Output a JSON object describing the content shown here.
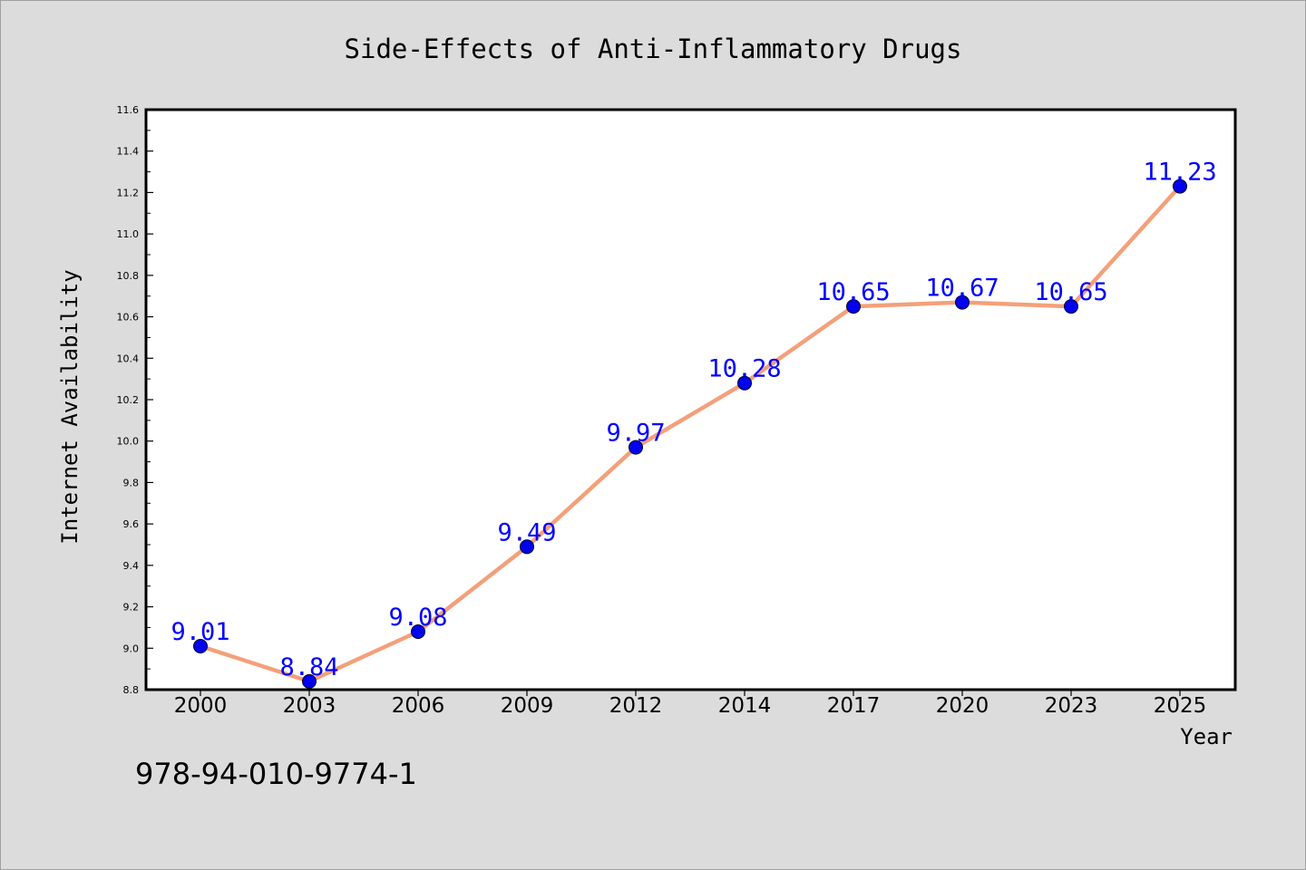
{
  "chart_data": {
    "type": "line",
    "title": "Side-Effects of Anti-Inflammatory Drugs",
    "xlabel": "Year",
    "ylabel": "Internet Availability",
    "categories": [
      "2000",
      "2003",
      "2006",
      "2009",
      "2012",
      "2014",
      "2017",
      "2020",
      "2023",
      "2025"
    ],
    "series": [
      {
        "values": [
          9.01,
          8.84,
          9.08,
          9.49,
          9.97,
          10.28,
          10.65,
          10.67,
          10.65,
          11.23
        ],
        "labels": [
          "9.01",
          "8.84",
          "9.08",
          "9.49",
          "9.97",
          "10.28",
          "10.65",
          "10.67",
          "10.65",
          "11.23"
        ],
        "line_color": "#f4a07a",
        "marker_color": "#0000ee"
      }
    ],
    "ylim": [
      8.8,
      11.6
    ],
    "yticks": [
      "8.8",
      "9.0",
      "9.2",
      "9.4",
      "9.6",
      "9.8",
      "10.0",
      "10.2",
      "10.4",
      "10.6",
      "10.8",
      "11.0",
      "11.2",
      "11.4",
      "11.6"
    ],
    "grid": false,
    "legend": "none",
    "data_label_color": "#0000ff",
    "annotation": "978-94-010-9774-1"
  }
}
